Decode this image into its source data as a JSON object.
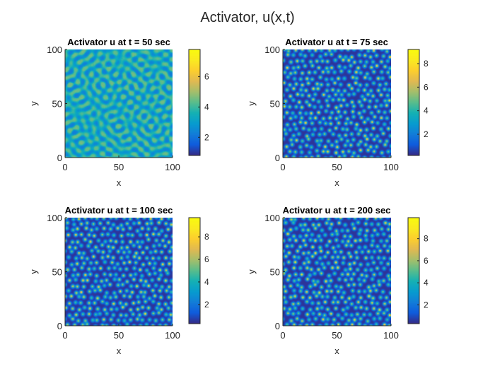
{
  "figure_title": "Activator, u(x,t)",
  "chart_data": [
    {
      "type": "heatmap",
      "title": "Activator u at t = 50 sec",
      "xlabel": "x",
      "ylabel": "y",
      "xlim": [
        0,
        100
      ],
      "ylim": [
        0,
        100
      ],
      "xticks": [
        "0",
        "50",
        "100"
      ],
      "yticks": [
        "0",
        "50",
        "100"
      ],
      "colorbar": {
        "min": 0.8,
        "max": 7.8,
        "ticks": [
          "2",
          "4",
          "6"
        ]
      },
      "pattern": "labyrinth stripes and spots",
      "colormap": "parula"
    },
    {
      "type": "heatmap",
      "title": "Activator u at t = 75 sec",
      "xlabel": "x",
      "ylabel": "y",
      "xlim": [
        0,
        100
      ],
      "ylim": [
        0,
        100
      ],
      "xticks": [
        "0",
        "50",
        "100"
      ],
      "yticks": [
        "0",
        "50",
        "100"
      ],
      "colorbar": {
        "min": 0.2,
        "max": 9.2,
        "ticks": [
          "2",
          "4",
          "6",
          "8"
        ]
      },
      "pattern": "spots",
      "colormap": "parula"
    },
    {
      "type": "heatmap",
      "title": "Activator u at t = 100 sec",
      "xlabel": "x",
      "ylabel": "y",
      "xlim": [
        0,
        100
      ],
      "ylim": [
        0,
        100
      ],
      "xticks": [
        "0",
        "50",
        "100"
      ],
      "yticks": [
        "0",
        "50",
        "100"
      ],
      "colorbar": {
        "min": 0.3,
        "max": 9.7,
        "ticks": [
          "2",
          "4",
          "6",
          "8"
        ]
      },
      "pattern": "spots",
      "colormap": "parula"
    },
    {
      "type": "heatmap",
      "title": "Activator u at t = 200 sec",
      "xlabel": "x",
      "ylabel": "y",
      "xlim": [
        0,
        100
      ],
      "ylim": [
        0,
        100
      ],
      "xticks": [
        "0",
        "50",
        "100"
      ],
      "yticks": [
        "0",
        "50",
        "100"
      ],
      "colorbar": {
        "min": 0.3,
        "max": 9.9,
        "ticks": [
          "2",
          "4",
          "6",
          "8"
        ]
      },
      "pattern": "spots",
      "colormap": "parula"
    }
  ]
}
